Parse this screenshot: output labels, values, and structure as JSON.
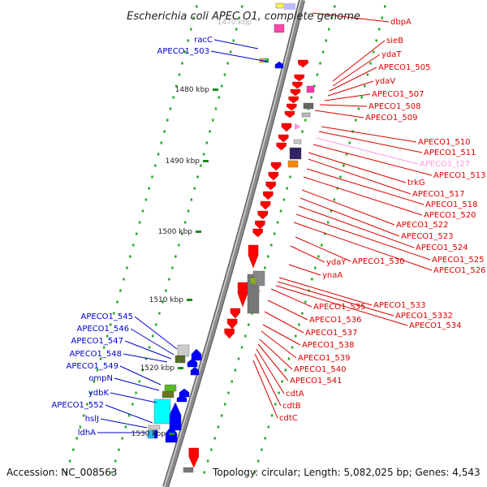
{
  "title": "Escherichia coli APEC O1, complete genome",
  "footer": {
    "accession": "Accession: NC_008563",
    "summary": "Topology: circular; Length: 5,082,025 bp; Genes: 4,543"
  },
  "colors": {
    "backbone": "#8a8a8a",
    "minus_strand": "#0000ff",
    "plus_strand": "#ff0000",
    "rna": "#ff99dd",
    "tick": "#228822",
    "label_left": "#0000cc",
    "label_right": "#dd0000"
  },
  "ticks": [
    {
      "label": "1480 kbp"
    },
    {
      "label": "1490 kbp"
    },
    {
      "label": "1500 kbp"
    },
    {
      "label": "1510 kbp"
    },
    {
      "label": "1520 kbp"
    },
    {
      "label": "1530 kbp"
    }
  ],
  "top_tick_label": "1470 kbp",
  "left_genes": [
    {
      "name": "racC"
    },
    {
      "name": "APECO1_503"
    },
    {
      "name": "APECO1_545"
    },
    {
      "name": "APECO1_546"
    },
    {
      "name": "APECO1_547"
    },
    {
      "name": "APECO1_548"
    },
    {
      "name": "APECO1_549"
    },
    {
      "name": "ompN"
    },
    {
      "name": "ydbK"
    },
    {
      "name": "APECO1_552"
    },
    {
      "name": "hslJ"
    },
    {
      "name": "ldhA"
    }
  ],
  "right_genes": [
    {
      "name": "dbpA"
    },
    {
      "name": "sieB"
    },
    {
      "name": "ydaT"
    },
    {
      "name": "APECO1_505"
    },
    {
      "name": "ydaV"
    },
    {
      "name": "APECO1_507"
    },
    {
      "name": "APECO1_508"
    },
    {
      "name": "APECO1_509"
    },
    {
      "name": "APECO1_510"
    },
    {
      "name": "APECO1_511"
    },
    {
      "name": "APECO1_t27"
    },
    {
      "name": "APECO1_513"
    },
    {
      "name": "trkG"
    },
    {
      "name": "APECO1_517"
    },
    {
      "name": "APECO1_518"
    },
    {
      "name": "APECO1_520"
    },
    {
      "name": "APECO1_522"
    },
    {
      "name": "APECO1_523"
    },
    {
      "name": "APECO1_524"
    },
    {
      "name": "APECO1_525"
    },
    {
      "name": "APECO1_526"
    },
    {
      "name": "ydaY"
    },
    {
      "name": "APECO1_530"
    },
    {
      "name": "ynaA"
    },
    {
      "name": "APECO1_533"
    },
    {
      "name": "APECO1_5332"
    },
    {
      "name": "APECO1_534"
    },
    {
      "name": "APECO1_535"
    },
    {
      "name": "APECO1_536"
    },
    {
      "name": "APECO1_537"
    },
    {
      "name": "APECO1_538"
    },
    {
      "name": "APECO1_539"
    },
    {
      "name": "APECO1_540"
    },
    {
      "name": "APECO1_541"
    },
    {
      "name": "cdtA"
    },
    {
      "name": "cdtB"
    },
    {
      "name": "cdtC"
    }
  ]
}
